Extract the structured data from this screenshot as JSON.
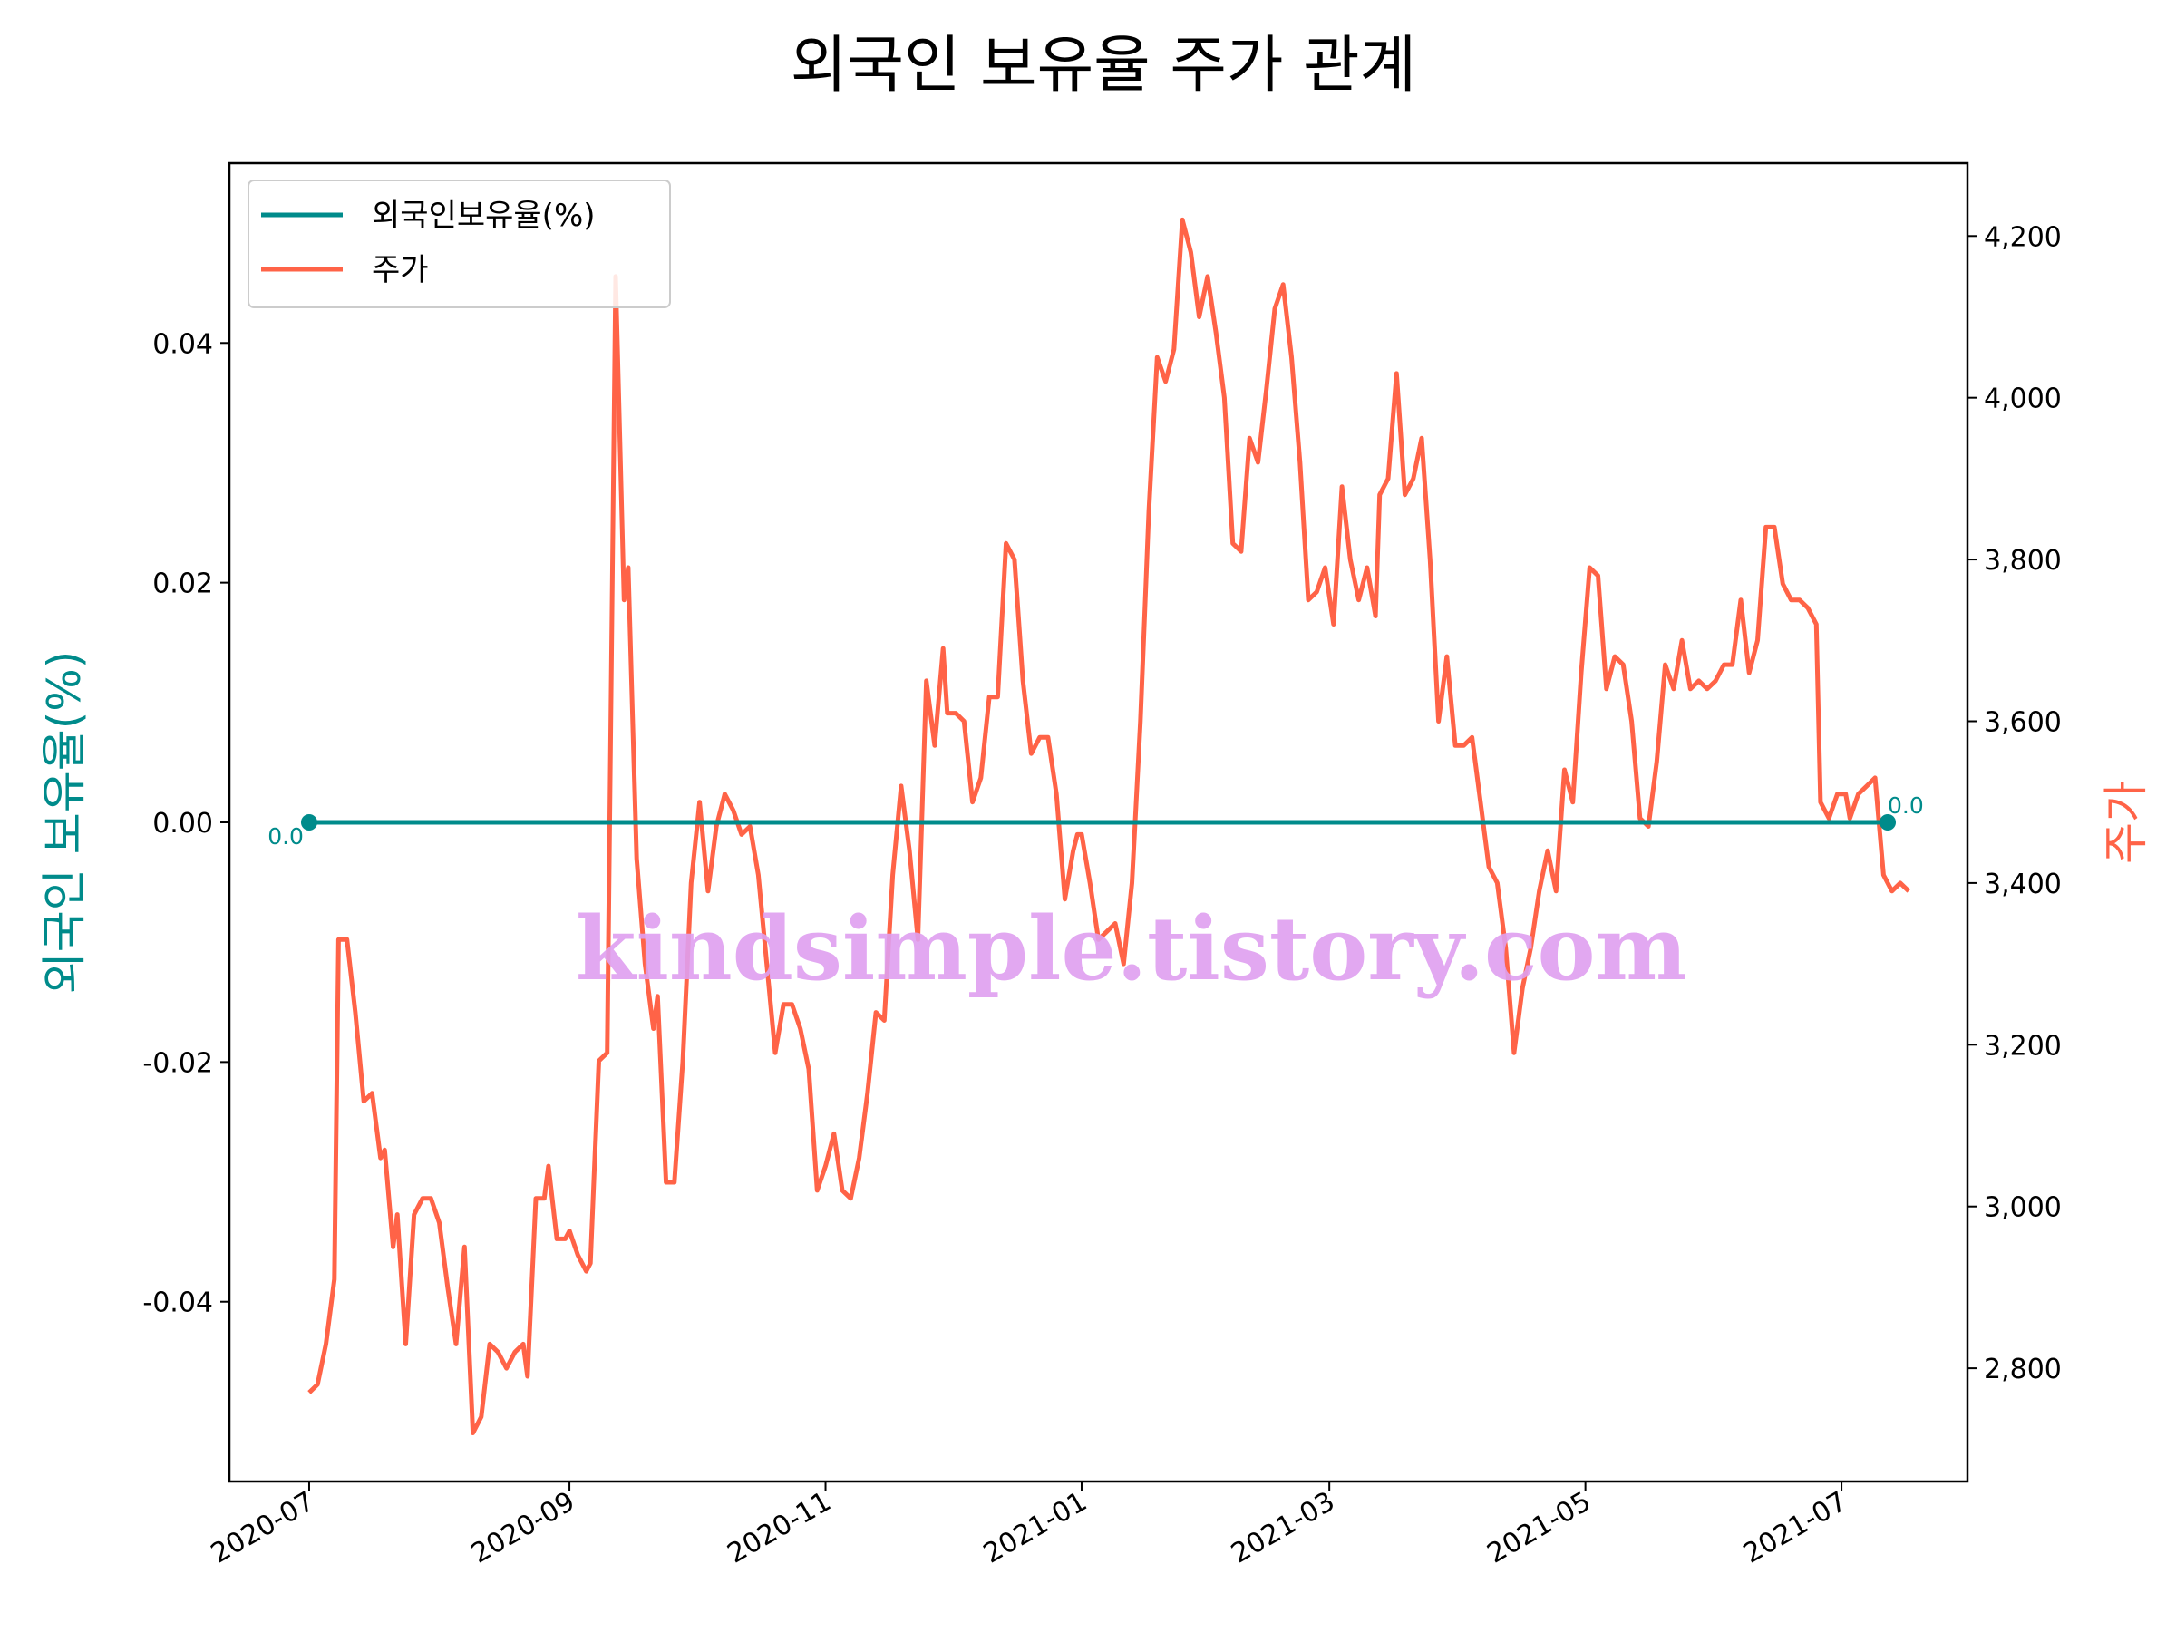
{
  "chart_data": {
    "type": "line",
    "title": "외국인 보유율 주가 관계",
    "xlabel": "",
    "ylabel_left": "외국인 보유율(%)",
    "ylabel_right": "주가",
    "left_axis": {
      "ylim": [
        -0.055,
        0.055
      ],
      "ticks": [
        -0.04,
        -0.02,
        0.0,
        0.02,
        0.04
      ],
      "tick_labels": [
        "-0.04",
        "-0.02",
        "0.00",
        "0.02",
        "0.04"
      ]
    },
    "right_axis": {
      "ylim": [
        2660,
        4290
      ],
      "ticks": [
        2800,
        3000,
        3200,
        3400,
        3600,
        3800,
        4000,
        4200
      ],
      "tick_labels": [
        "2,800",
        "3,000",
        "3,200",
        "3,400",
        "3,600",
        "3,800",
        "4,000",
        "4,200"
      ]
    },
    "x_axis": {
      "range": [
        "2020-06-12",
        "2021-07-31"
      ],
      "ticks": [
        "2020-07-01",
        "2020-09-01",
        "2020-11-01",
        "2021-01-01",
        "2021-03-01",
        "2021-05-01",
        "2021-07-01"
      ],
      "tick_labels": [
        "2020-07",
        "2020-09",
        "2020-11",
        "2021-01",
        "2021-03",
        "2021-05",
        "2021-07"
      ]
    },
    "legend": {
      "placement": "top-left",
      "entries": [
        "외국인보유율(%)",
        "주가"
      ]
    },
    "series": [
      {
        "name": "외국인보유율(%)",
        "axis": "left",
        "color": "#008b8b",
        "points": [
          [
            "2020-07-01",
            0.0
          ],
          [
            "2021-07-12",
            0.0
          ]
        ],
        "markers": "endpoints",
        "annotations": [
          {
            "x": "2020-07-01",
            "y": 0.0,
            "text": "0.0"
          },
          {
            "x": "2021-07-12",
            "y": 0.0,
            "text": "0.0"
          }
        ]
      },
      {
        "name": "주가",
        "axis": "right",
        "color": "#ff6347",
        "points": [
          [
            "2020-07-01",
            2770
          ],
          [
            "2020-07-03",
            2780
          ],
          [
            "2020-07-05",
            2830
          ],
          [
            "2020-07-07",
            2910
          ],
          [
            "2020-07-08",
            3330
          ],
          [
            "2020-07-10",
            3330
          ],
          [
            "2020-07-12",
            3240
          ],
          [
            "2020-07-14",
            3130
          ],
          [
            "2020-07-16",
            3140
          ],
          [
            "2020-07-18",
            3060
          ],
          [
            "2020-07-19",
            3070
          ],
          [
            "2020-07-21",
            2950
          ],
          [
            "2020-07-22",
            2990
          ],
          [
            "2020-07-24",
            2830
          ],
          [
            "2020-07-26",
            2990
          ],
          [
            "2020-07-28",
            3010
          ],
          [
            "2020-07-30",
            3010
          ],
          [
            "2020-08-01",
            2980
          ],
          [
            "2020-08-03",
            2900
          ],
          [
            "2020-08-05",
            2830
          ],
          [
            "2020-08-07",
            2950
          ],
          [
            "2020-08-09",
            2720
          ],
          [
            "2020-08-11",
            2740
          ],
          [
            "2020-08-13",
            2830
          ],
          [
            "2020-08-15",
            2820
          ],
          [
            "2020-08-17",
            2800
          ],
          [
            "2020-08-19",
            2820
          ],
          [
            "2020-08-21",
            2830
          ],
          [
            "2020-08-22",
            2790
          ],
          [
            "2020-08-24",
            3010
          ],
          [
            "2020-08-26",
            3010
          ],
          [
            "2020-08-27",
            3050
          ],
          [
            "2020-08-29",
            2960
          ],
          [
            "2020-08-31",
            2960
          ],
          [
            "2020-09-01",
            2970
          ],
          [
            "2020-09-03",
            2940
          ],
          [
            "2020-09-05",
            2920
          ],
          [
            "2020-09-06",
            2930
          ],
          [
            "2020-09-08",
            3180
          ],
          [
            "2020-09-10",
            3190
          ],
          [
            "2020-09-12",
            4150
          ],
          [
            "2020-09-14",
            3750
          ],
          [
            "2020-09-15",
            3790
          ],
          [
            "2020-09-17",
            3430
          ],
          [
            "2020-09-19",
            3300
          ],
          [
            "2020-09-21",
            3220
          ],
          [
            "2020-09-22",
            3260
          ],
          [
            "2020-09-24",
            3030
          ],
          [
            "2020-09-26",
            3030
          ],
          [
            "2020-09-28",
            3180
          ],
          [
            "2020-09-30",
            3400
          ],
          [
            "2020-10-02",
            3500
          ],
          [
            "2020-10-04",
            3390
          ],
          [
            "2020-10-06",
            3470
          ],
          [
            "2020-10-08",
            3510
          ],
          [
            "2020-10-10",
            3490
          ],
          [
            "2020-10-12",
            3460
          ],
          [
            "2020-10-14",
            3470
          ],
          [
            "2020-10-16",
            3410
          ],
          [
            "2020-10-18",
            3300
          ],
          [
            "2020-10-20",
            3190
          ],
          [
            "2020-10-22",
            3250
          ],
          [
            "2020-10-24",
            3250
          ],
          [
            "2020-10-26",
            3220
          ],
          [
            "2020-10-28",
            3170
          ],
          [
            "2020-10-30",
            3020
          ],
          [
            "2020-11-01",
            3050
          ],
          [
            "2020-11-03",
            3090
          ],
          [
            "2020-11-05",
            3020
          ],
          [
            "2020-11-07",
            3010
          ],
          [
            "2020-11-09",
            3060
          ],
          [
            "2020-11-11",
            3140
          ],
          [
            "2020-11-13",
            3240
          ],
          [
            "2020-11-15",
            3230
          ],
          [
            "2020-11-17",
            3410
          ],
          [
            "2020-11-19",
            3520
          ],
          [
            "2020-11-21",
            3440
          ],
          [
            "2020-11-23",
            3330
          ],
          [
            "2020-11-25",
            3650
          ],
          [
            "2020-11-27",
            3570
          ],
          [
            "2020-11-29",
            3690
          ],
          [
            "2020-11-30",
            3610
          ],
          [
            "2020-12-02",
            3610
          ],
          [
            "2020-12-04",
            3600
          ],
          [
            "2020-12-06",
            3500
          ],
          [
            "2020-12-08",
            3530
          ],
          [
            "2020-12-10",
            3630
          ],
          [
            "2020-12-12",
            3630
          ],
          [
            "2020-12-14",
            3820
          ],
          [
            "2020-12-16",
            3800
          ],
          [
            "2020-12-18",
            3650
          ],
          [
            "2020-12-20",
            3560
          ],
          [
            "2020-12-22",
            3580
          ],
          [
            "2020-12-24",
            3580
          ],
          [
            "2020-12-26",
            3510
          ],
          [
            "2020-12-28",
            3380
          ],
          [
            "2020-12-30",
            3440
          ],
          [
            "2020-12-31",
            3460
          ],
          [
            "2021-01-01",
            3460
          ],
          [
            "2021-01-03",
            3400
          ],
          [
            "2021-01-05",
            3330
          ],
          [
            "2021-01-07",
            3340
          ],
          [
            "2021-01-09",
            3350
          ],
          [
            "2021-01-11",
            3300
          ],
          [
            "2021-01-13",
            3400
          ],
          [
            "2021-01-15",
            3600
          ],
          [
            "2021-01-17",
            3860
          ],
          [
            "2021-01-19",
            4050
          ],
          [
            "2021-01-21",
            4020
          ],
          [
            "2021-01-23",
            4060
          ],
          [
            "2021-01-25",
            4220
          ],
          [
            "2021-01-27",
            4180
          ],
          [
            "2021-01-29",
            4100
          ],
          [
            "2021-01-31",
            4150
          ],
          [
            "2021-02-02",
            4080
          ],
          [
            "2021-02-04",
            4000
          ],
          [
            "2021-02-06",
            3820
          ],
          [
            "2021-02-08",
            3810
          ],
          [
            "2021-02-10",
            3950
          ],
          [
            "2021-02-12",
            3920
          ],
          [
            "2021-02-14",
            4010
          ],
          [
            "2021-02-16",
            4110
          ],
          [
            "2021-02-18",
            4140
          ],
          [
            "2021-02-20",
            4050
          ],
          [
            "2021-02-22",
            3920
          ],
          [
            "2021-02-24",
            3750
          ],
          [
            "2021-02-26",
            3760
          ],
          [
            "2021-02-28",
            3790
          ],
          [
            "2021-03-02",
            3720
          ],
          [
            "2021-03-04",
            3890
          ],
          [
            "2021-03-06",
            3800
          ],
          [
            "2021-03-08",
            3750
          ],
          [
            "2021-03-10",
            3790
          ],
          [
            "2021-03-12",
            3730
          ],
          [
            "2021-03-13",
            3880
          ],
          [
            "2021-03-15",
            3900
          ],
          [
            "2021-03-17",
            4030
          ],
          [
            "2021-03-19",
            3880
          ],
          [
            "2021-03-21",
            3900
          ],
          [
            "2021-03-23",
            3950
          ],
          [
            "2021-03-25",
            3800
          ],
          [
            "2021-03-27",
            3600
          ],
          [
            "2021-03-29",
            3680
          ],
          [
            "2021-03-31",
            3570
          ],
          [
            "2021-04-02",
            3570
          ],
          [
            "2021-04-04",
            3580
          ],
          [
            "2021-04-06",
            3500
          ],
          [
            "2021-04-08",
            3420
          ],
          [
            "2021-04-10",
            3400
          ],
          [
            "2021-04-12",
            3320
          ],
          [
            "2021-04-14",
            3190
          ],
          [
            "2021-04-16",
            3270
          ],
          [
            "2021-04-18",
            3320
          ],
          [
            "2021-04-20",
            3390
          ],
          [
            "2021-04-22",
            3440
          ],
          [
            "2021-04-24",
            3390
          ],
          [
            "2021-04-26",
            3540
          ],
          [
            "2021-04-28",
            3500
          ],
          [
            "2021-04-30",
            3660
          ],
          [
            "2021-05-02",
            3790
          ],
          [
            "2021-05-04",
            3780
          ],
          [
            "2021-05-06",
            3640
          ],
          [
            "2021-05-08",
            3680
          ],
          [
            "2021-05-10",
            3670
          ],
          [
            "2021-05-12",
            3600
          ],
          [
            "2021-05-14",
            3480
          ],
          [
            "2021-05-16",
            3470
          ],
          [
            "2021-05-18",
            3550
          ],
          [
            "2021-05-20",
            3670
          ],
          [
            "2021-05-22",
            3640
          ],
          [
            "2021-05-24",
            3700
          ],
          [
            "2021-05-26",
            3640
          ],
          [
            "2021-05-28",
            3650
          ],
          [
            "2021-05-30",
            3640
          ],
          [
            "2021-06-01",
            3650
          ],
          [
            "2021-06-03",
            3670
          ],
          [
            "2021-06-05",
            3670
          ],
          [
            "2021-06-07",
            3750
          ],
          [
            "2021-06-09",
            3660
          ],
          [
            "2021-06-11",
            3700
          ],
          [
            "2021-06-13",
            3840
          ],
          [
            "2021-06-15",
            3840
          ],
          [
            "2021-06-17",
            3770
          ],
          [
            "2021-06-19",
            3750
          ],
          [
            "2021-06-21",
            3750
          ],
          [
            "2021-06-23",
            3740
          ],
          [
            "2021-06-25",
            3720
          ],
          [
            "2021-06-26",
            3500
          ],
          [
            "2021-06-28",
            3480
          ],
          [
            "2021-06-30",
            3510
          ],
          [
            "2021-07-02",
            3510
          ],
          [
            "2021-07-03",
            3480
          ],
          [
            "2021-07-05",
            3510
          ],
          [
            "2021-07-07",
            3520
          ],
          [
            "2021-07-09",
            3530
          ],
          [
            "2021-07-11",
            3410
          ],
          [
            "2021-07-13",
            3390
          ],
          [
            "2021-07-15",
            3400
          ],
          [
            "2021-07-17",
            3390
          ]
        ]
      }
    ]
  },
  "watermark": "kindsimple.tistory.com"
}
